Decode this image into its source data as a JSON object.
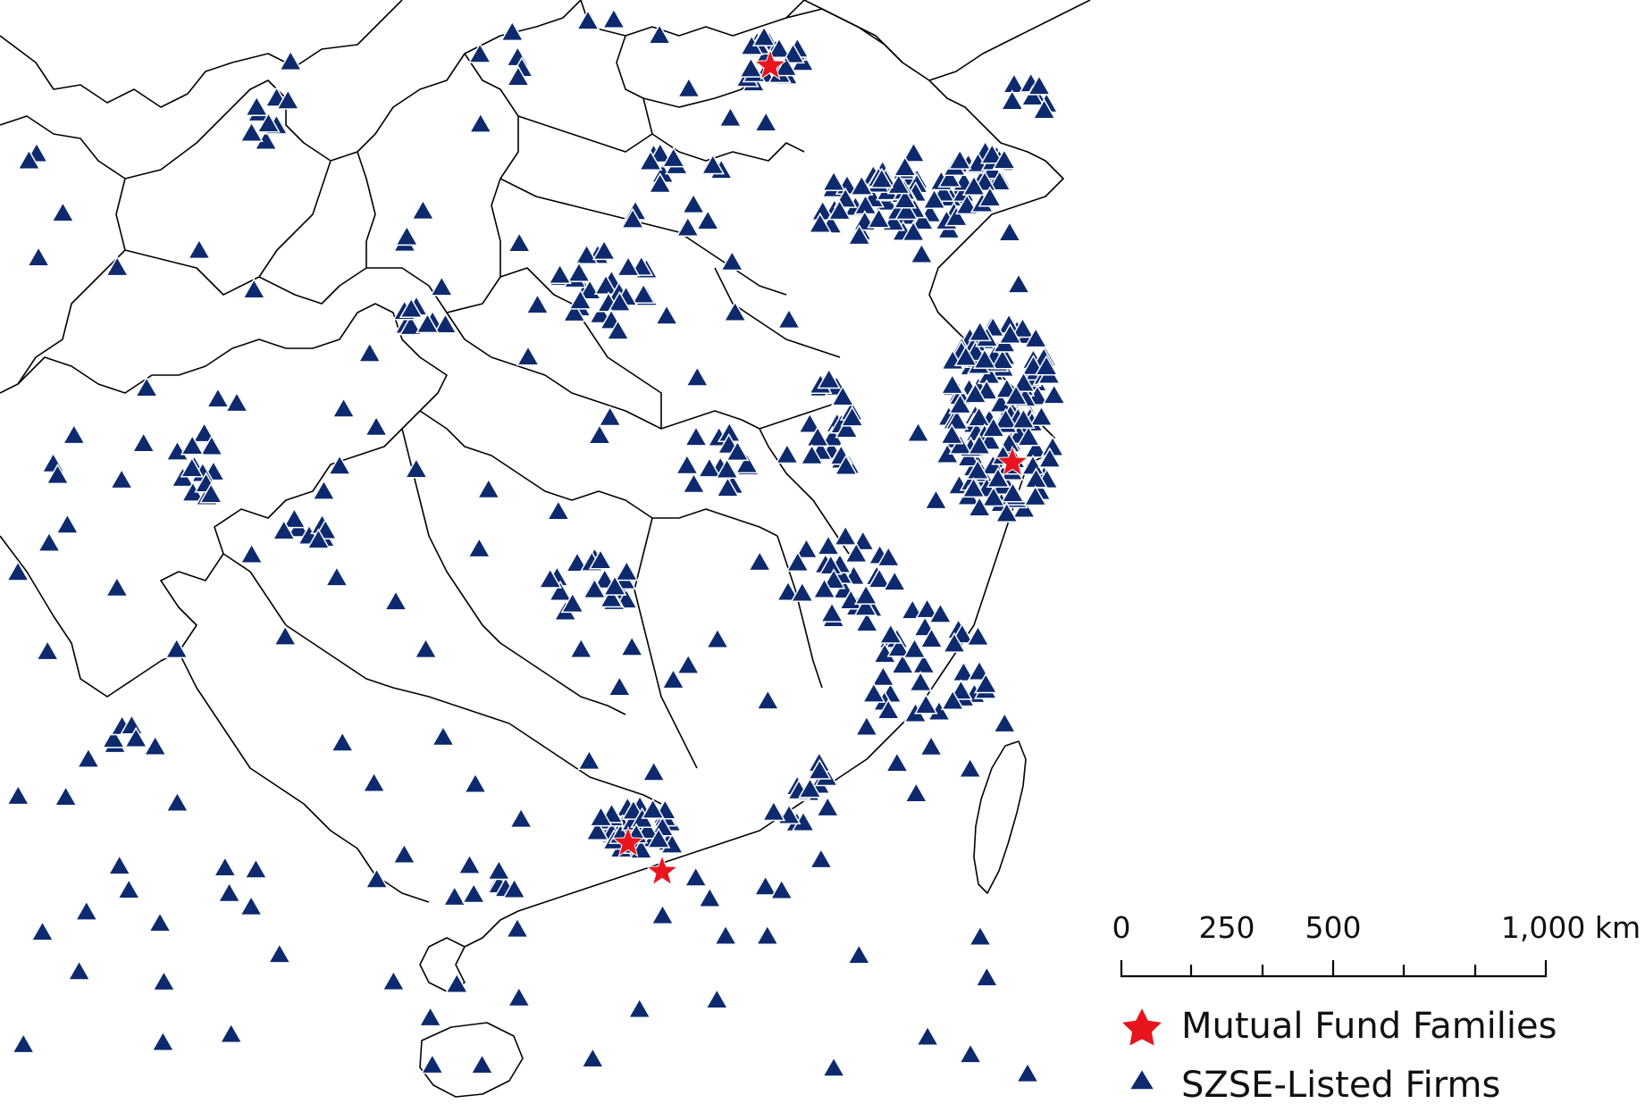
{
  "scale_bar": {
    "labels": [
      "0",
      "250",
      "500",
      "1,000 km"
    ]
  },
  "legend": {
    "items": [
      {
        "label": "Mutual Fund Families",
        "symbol": "red-star-icon",
        "color": "#e8141e"
      },
      {
        "label": "SZSE-Listed Firms",
        "symbol": "blue-triangle-icon",
        "color": "#0d2a6e"
      }
    ]
  },
  "colors": {
    "firm_marker": "#0d2a6e",
    "fund_marker": "#e8141e",
    "boundary": "#000000",
    "background": "#ffffff"
  }
}
